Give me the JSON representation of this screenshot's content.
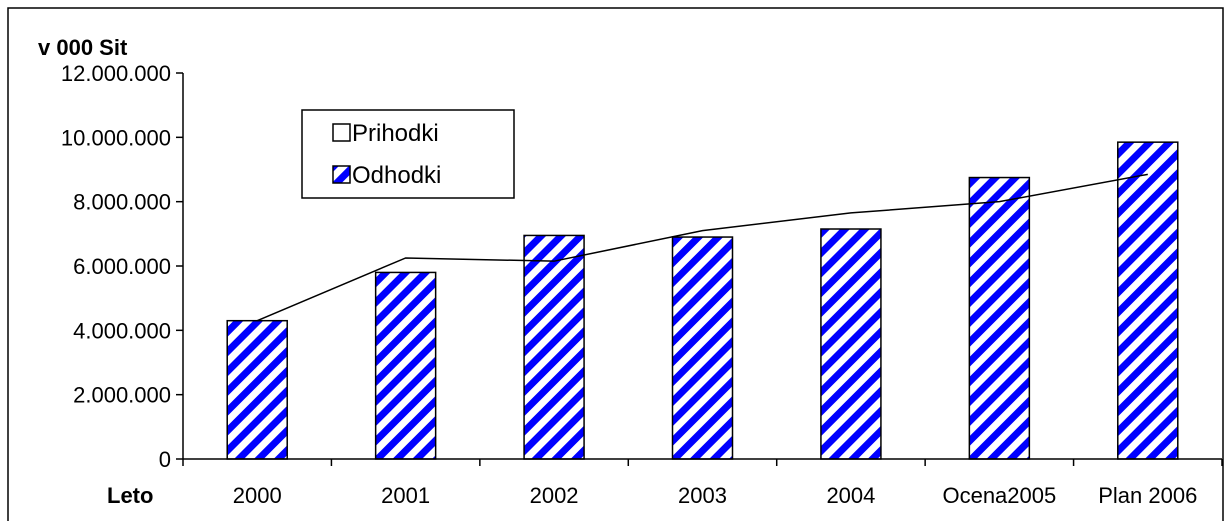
{
  "chart_data": {
    "type": "bar",
    "ylabel": "v 000 Sit",
    "xlabel": "Leto",
    "categories": [
      "2000",
      "2001",
      "2002",
      "2003",
      "2004",
      "Ocena2005",
      "Plan 2006"
    ],
    "ylim": [
      0,
      12000000
    ],
    "yticks": [
      0,
      2000000,
      4000000,
      6000000,
      8000000,
      10000000,
      12000000
    ],
    "ytick_labels": [
      "0",
      "2.000.000",
      "4.000.000",
      "6.000.000",
      "8.000.000",
      "10.000.000",
      "12.000.000"
    ],
    "grid": false,
    "legend_position": "top-left",
    "series": [
      {
        "name": "Prihodki",
        "kind": "line",
        "values": [
          4300000,
          6250000,
          6150000,
          7100000,
          7650000,
          8000000,
          8850000
        ],
        "color": "#000000"
      },
      {
        "name": "Odhodki",
        "kind": "bar",
        "values": [
          4300000,
          5800000,
          6950000,
          6900000,
          7150000,
          8750000,
          9850000
        ],
        "color": "#0000ff",
        "pattern": "diagonal-stripes"
      }
    ]
  }
}
